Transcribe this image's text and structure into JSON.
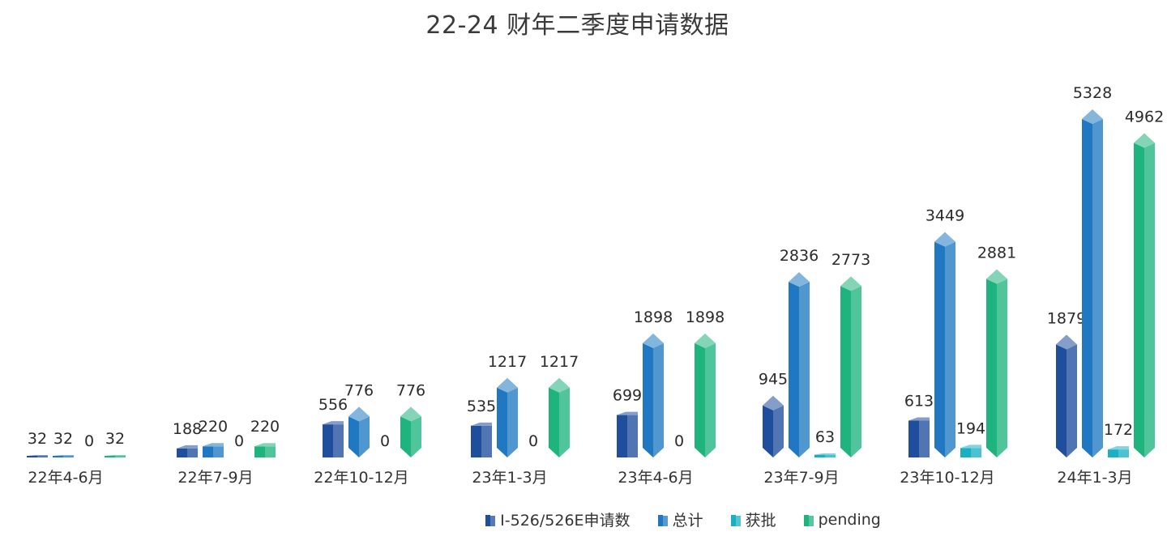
{
  "chart_data": {
    "type": "bar",
    "title": "22-24 财年二季度申请数据",
    "categories": [
      "22年4-6月",
      "22年7-9月",
      "22年10-12月",
      "23年1-3月",
      "23年4-6月",
      "23年7-9月",
      "23年10-12月",
      "24年1-3月"
    ],
    "series": [
      {
        "name": "I-526/526E申请数",
        "color": "#1f4e9c",
        "values": [
          32,
          188,
          556,
          535,
          699,
          945,
          613,
          1879
        ]
      },
      {
        "name": "总计",
        "color": "#1f78c1",
        "values": [
          32,
          220,
          776,
          1217,
          1898,
          2836,
          3449,
          5328
        ]
      },
      {
        "name": "获批",
        "color": "#1ab0c4",
        "values": [
          0,
          0,
          0,
          0,
          0,
          63,
          194,
          172
        ]
      },
      {
        "name": "pending",
        "color": "#1fb37e",
        "values": [
          32,
          220,
          776,
          1217,
          1898,
          2773,
          2881,
          4962
        ]
      }
    ],
    "legend_position": "bottom",
    "grid": false,
    "ylim": [
      0,
      5328
    ]
  }
}
